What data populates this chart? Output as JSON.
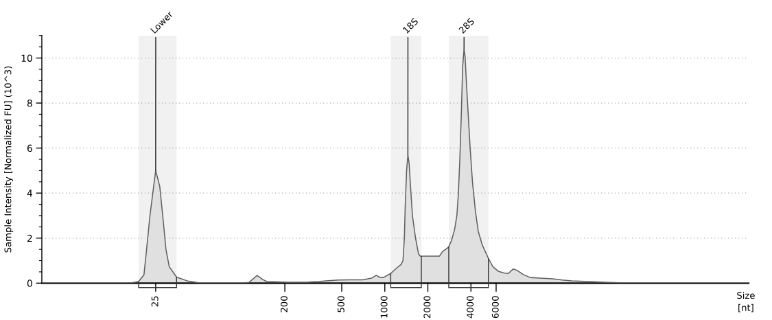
{
  "chart_data": {
    "type": "area",
    "ylabel": "Sample Intensity [Normalized FU] (10^3)",
    "xlabel": "Size\n[nt]",
    "x": [
      4,
      17,
      19,
      20.7,
      21.6,
      22.8,
      24.2,
      25,
      26.7,
      28.2,
      29.5,
      31.1,
      35,
      42,
      50,
      105,
      112,
      128,
      141,
      150,
      212,
      292,
      344,
      388,
      474,
      701,
      808,
      870,
      918,
      977,
      1100,
      1200,
      1300,
      1340,
      1370,
      1390,
      1420,
      1450,
      1480,
      1520,
      1560,
      1640,
      1720,
      1770,
      1860,
      2010,
      2150,
      2410,
      2530,
      2660,
      2790,
      2930,
      3080,
      3190,
      3270,
      3350,
      3430,
      3500,
      3580,
      3640,
      3720,
      3820,
      3950,
      4100,
      4300,
      4500,
      4800,
      5300,
      5700,
      6200,
      6800,
      7300,
      7900,
      8400,
      9300,
      10400,
      12200,
      14900,
      17400,
      20300,
      26700,
      34400,
      44000,
      350000
    ],
    "values": [
      0.02,
      0.02,
      0.07,
      0.37,
      1.5,
      3.0,
      4.3,
      5.0,
      4.3,
      2.8,
      1.5,
      0.73,
      0.27,
      0.09,
      0.02,
      0.02,
      0.03,
      0.34,
      0.15,
      0.07,
      0.04,
      0.05,
      0.07,
      0.1,
      0.14,
      0.15,
      0.22,
      0.35,
      0.27,
      0.25,
      0.43,
      0.65,
      0.83,
      1.0,
      2.0,
      3.5,
      5.0,
      5.7,
      5.3,
      4.1,
      3.0,
      2.0,
      1.3,
      1.2,
      1.2,
      1.2,
      1.2,
      1.2,
      1.4,
      1.5,
      1.6,
      1.9,
      2.4,
      3.0,
      4.0,
      5.6,
      7.6,
      9.6,
      10.4,
      10.1,
      8.9,
      7.6,
      6.0,
      4.5,
      3.2,
      2.3,
      1.7,
      1.1,
      0.73,
      0.53,
      0.45,
      0.43,
      0.63,
      0.57,
      0.38,
      0.25,
      0.22,
      0.19,
      0.14,
      0.1,
      0.07,
      0.04,
      0.02,
      0.02
    ],
    "color": "#e0e0e0",
    "log": "x",
    "xlim": [
      4,
      350000
    ],
    "xticks": [
      25,
      200,
      500,
      1000,
      2000,
      4000,
      6000
    ],
    "ylim": [
      0,
      11
    ],
    "yticks": [
      0,
      2,
      4,
      6,
      8,
      10
    ],
    "grid": "y",
    "annotations": [
      {
        "text": "Lower",
        "x": 25,
        "y": 5.0
      },
      {
        "text": "18S",
        "x": 1450,
        "y": 5.7
      },
      {
        "text": "28S",
        "x": 3580,
        "y": 10.4
      }
    ],
    "bands": [
      {
        "axis": "x",
        "from": 19,
        "to": 35
      },
      {
        "axis": "x",
        "from": 1100,
        "to": 1800
      },
      {
        "axis": "x",
        "from": 2800,
        "to": 5300
      }
    ]
  }
}
